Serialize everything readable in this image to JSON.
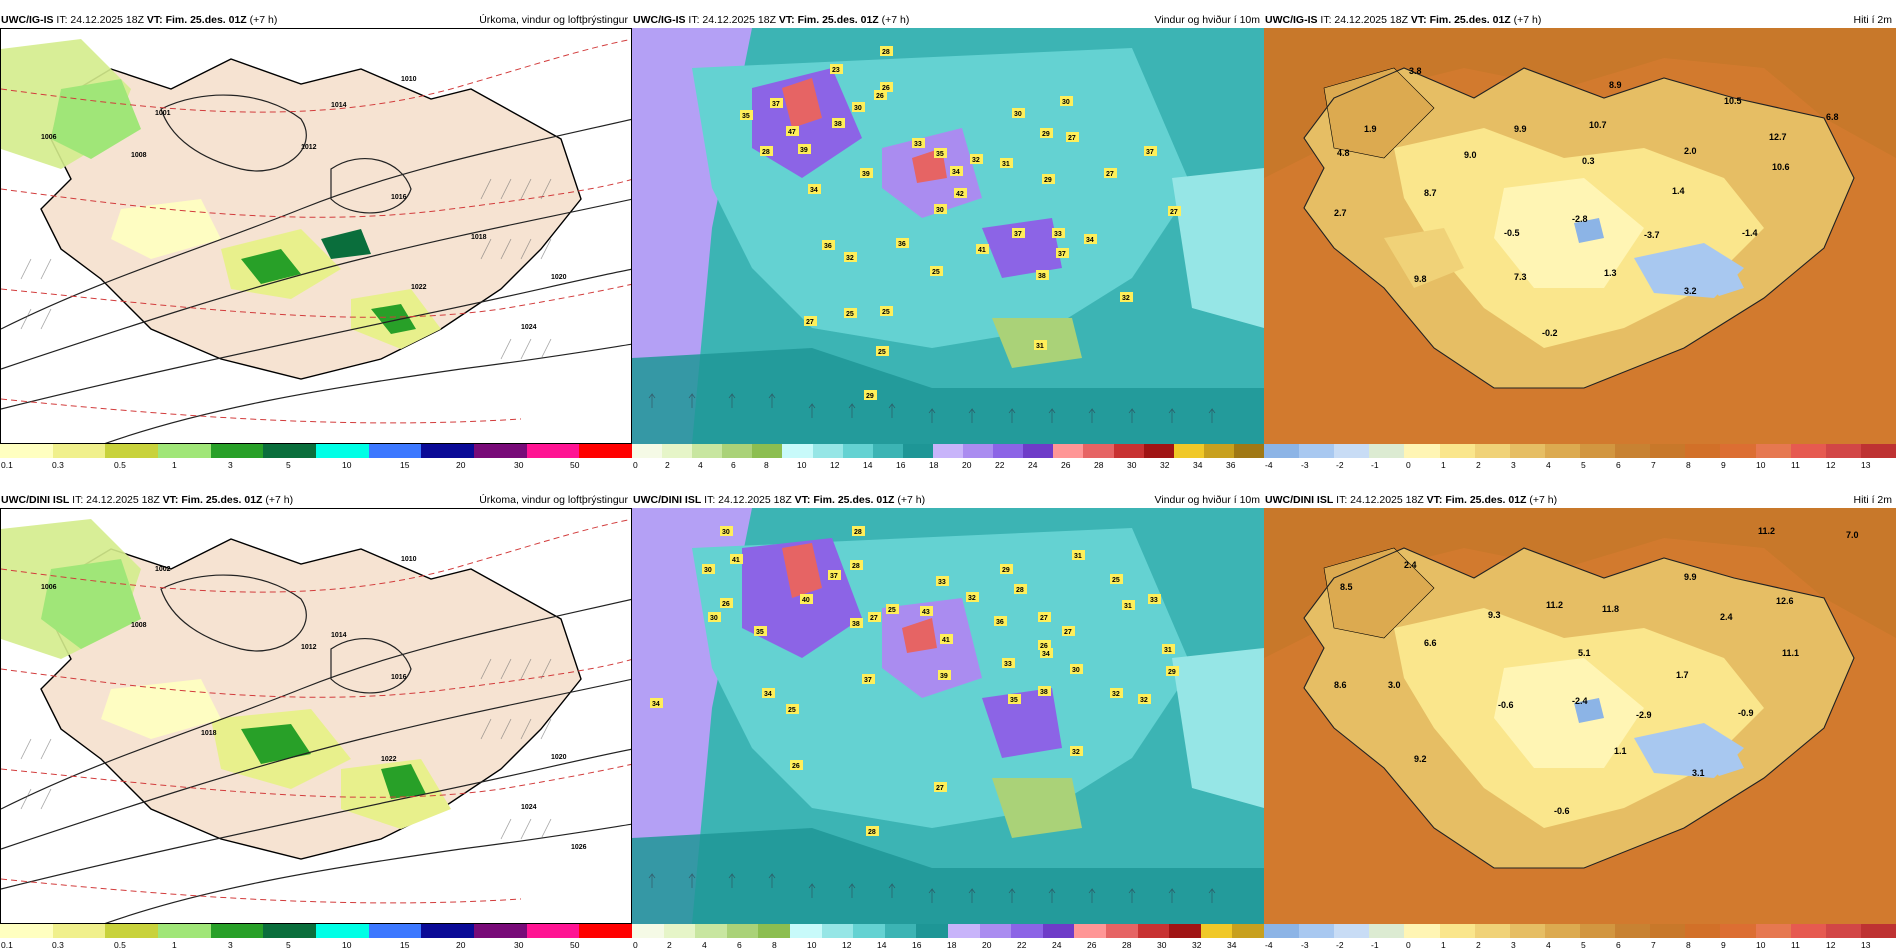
{
  "rows": [
    {
      "model": "UWC/IG-IS",
      "precip": {
        "it": "IT: 24.12.2025 18Z",
        "vt_label": "VT:",
        "vt": "Fim. 25.des. 01Z",
        "lead": "(+7 h)",
        "title": "Úrkoma, vindur og loftþrýstingur",
        "pressure_labels": [
          "1001",
          "1006",
          "1008",
          "1010",
          "1012",
          "1014",
          "1016",
          "1018",
          "1020",
          "1022",
          "1024"
        ],
        "precip_ticks": [
          "0.1",
          "0.3",
          "0.5",
          "1",
          "3",
          "5",
          "10",
          "15",
          "20",
          "30",
          "50"
        ]
      },
      "wind": {
        "it": "IT: 24.12.2025 18Z",
        "vt_label": "VT:",
        "vt": "Fim. 25.des. 01Z",
        "lead": "(+7 h)",
        "title": "Vindur og hviður í 10m",
        "gust_labels": [
          "28",
          "23",
          "26",
          "30",
          "35",
          "37",
          "47",
          "28",
          "39",
          "38",
          "34",
          "32",
          "30",
          "29",
          "27",
          "26",
          "39",
          "36",
          "32",
          "33",
          "35",
          "37",
          "42",
          "31",
          "29",
          "27",
          "37",
          "30",
          "27",
          "36",
          "34",
          "30",
          "25",
          "41",
          "37",
          "32",
          "33",
          "38",
          "34",
          "27",
          "25",
          "31",
          "25",
          "29",
          "25"
        ],
        "wind_ticks": [
          "0",
          "2",
          "4",
          "6",
          "8",
          "10",
          "12",
          "14",
          "16",
          "18",
          "20",
          "22",
          "24",
          "26",
          "28",
          "30",
          "32",
          "34",
          "36"
        ]
      },
      "temp": {
        "it": "IT: 24.12.2025 18Z",
        "vt_label": "VT:",
        "vt": "Fim. 25.des. 01Z",
        "lead": "(+7 h)",
        "title": "Hiti í 2m",
        "values": [
          "3.8",
          "8.9",
          "10.5",
          "6.8",
          "1.9",
          "9.9",
          "10.7",
          "12.7",
          "4.8",
          "9.0",
          "2.0",
          "0.3",
          "10.6",
          "8.7",
          "1.4",
          "2.7",
          "-0.5",
          "-2.8",
          "-3.7",
          "-1.4",
          "9.8",
          "7.3",
          "1.3",
          "3.2",
          "-0.2"
        ],
        "temp_ticks": [
          "-4",
          "-3",
          "-2",
          "-1",
          "0",
          "1",
          "2",
          "3",
          "4",
          "5",
          "6",
          "7",
          "8",
          "9",
          "10",
          "11",
          "12",
          "13"
        ]
      }
    },
    {
      "model": "UWC/DINI ISL",
      "precip": {
        "it": "IT: 24.12.2025 18Z",
        "vt_label": "VT:",
        "vt": "Fim. 25.des. 01Z",
        "lead": "(+7 h)",
        "title": "Úrkoma, vindur og loftþrýstingur",
        "pressure_labels": [
          "1002",
          "1006",
          "1008",
          "1010",
          "1012",
          "1014",
          "1016",
          "1018",
          "1020",
          "1022",
          "1024",
          "1026"
        ],
        "precip_ticks": [
          "0.1",
          "0.3",
          "0.5",
          "1",
          "3",
          "5",
          "10",
          "15",
          "20",
          "30",
          "50"
        ]
      },
      "wind": {
        "it": "IT: 24.12.2025 18Z",
        "vt_label": "VT:",
        "vt": "Fim. 25.des. 01Z",
        "lead": "(+7 h)",
        "title": "Vindur og hviður í 10m",
        "gust_labels": [
          "30",
          "41",
          "30",
          "26",
          "34",
          "30",
          "35",
          "34",
          "40",
          "37",
          "28",
          "28",
          "38",
          "33",
          "43",
          "41",
          "32",
          "25",
          "27",
          "37",
          "29",
          "28",
          "31",
          "25",
          "39",
          "33",
          "31",
          "27",
          "26",
          "27",
          "33",
          "36",
          "34",
          "35",
          "38",
          "30",
          "32",
          "32",
          "31",
          "29",
          "25",
          "26",
          "32",
          "28",
          "27"
        ],
        "wind_ticks": [
          "0",
          "2",
          "4",
          "6",
          "8",
          "10",
          "12",
          "14",
          "16",
          "18",
          "20",
          "22",
          "24",
          "26",
          "28",
          "30",
          "32",
          "34"
        ]
      },
      "temp": {
        "it": "IT: 24.12.2025 18Z",
        "vt_label": "VT:",
        "vt": "Fim. 25.des. 01Z",
        "lead": "(+7 h)",
        "title": "Hiti í 2m",
        "values": [
          "11.2",
          "7.0",
          "8.5",
          "2.4",
          "9.3",
          "11.2",
          "11.8",
          "9.9",
          "12.6",
          "6.6",
          "2.4",
          "5.1",
          "11.1",
          "8.6",
          "3.0",
          "1.7",
          "-0.6",
          "-2.4",
          "-2.9",
          "-0.9",
          "9.2",
          "1.1",
          "3.1",
          "-0.6"
        ],
        "temp_ticks": [
          "-4",
          "-3",
          "-2",
          "-1",
          "0",
          "1",
          "2",
          "3",
          "4",
          "5",
          "6",
          "7",
          "8",
          "9",
          "10",
          "11",
          "12",
          "13"
        ]
      }
    }
  ],
  "colors": {
    "precip_scale": [
      "#ffffc0",
      "#f0f08c",
      "#c8d23c",
      "#a0e678",
      "#28a028",
      "#0a6e3c",
      "#00ffe6",
      "#3c78ff",
      "#0a0a96",
      "#780a78",
      "#ff1493",
      "#ff0000"
    ],
    "wind_scale": [
      "#f5fae6",
      "#e6f5c8",
      "#c8e6a0",
      "#aad278",
      "#8cbe50",
      "#c8fafa",
      "#96e6e6",
      "#64d2d2",
      "#3cb4b4",
      "#1e9696",
      "#c8b4fa",
      "#aa8cf0",
      "#8c64e6",
      "#6e3cc8",
      "#ff9696",
      "#e66464",
      "#c83232",
      "#a01414",
      "#f0c828",
      "#c8a01e",
      "#a07814"
    ],
    "temp_scale": [
      "#8cb4e6",
      "#a8c8f0",
      "#c8dcf5",
      "#dcebd2",
      "#fff5b4",
      "#fae68c",
      "#f0d278",
      "#e6be64",
      "#dcaa50",
      "#d29640",
      "#c88232",
      "#c8782a",
      "#d27028",
      "#dc6e32",
      "#e67850",
      "#e65a50",
      "#d24646",
      "#be3232"
    ],
    "map_land_precip": "#f6e3d2",
    "map_sea_wind": "#a08cf0"
  }
}
